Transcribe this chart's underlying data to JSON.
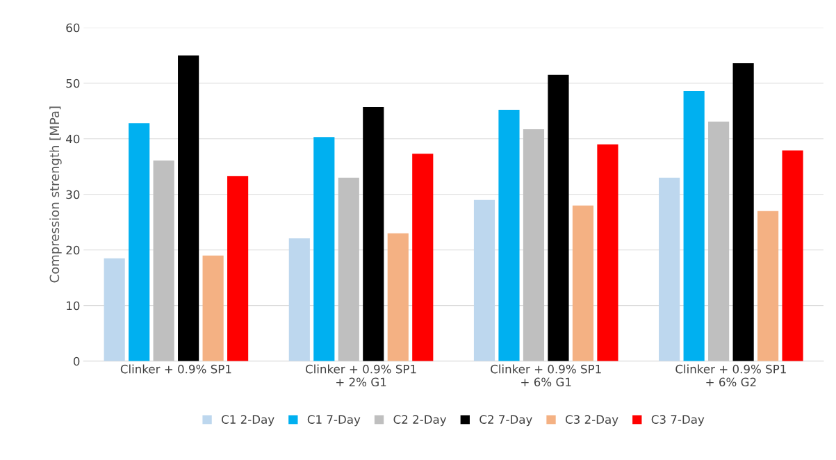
{
  "chart_data": {
    "type": "bar",
    "ylabel": "Compression strength [MPa]",
    "categories": [
      "Clinker + 0.9% SP1",
      "Clinker + 0.9% SP1\n+ 2% G1",
      "Clinker + 0.9% SP1\n+ 6% G1",
      "Clinker + 0.9% SP1\n+ 6% G2"
    ],
    "series": [
      {
        "name": "C1 2-Day",
        "color": "#bdd7ee",
        "values": [
          18.5,
          22.1,
          29.0,
          33.0
        ]
      },
      {
        "name": "C1 7-Day",
        "color": "#00b0f0",
        "values": [
          42.8,
          40.3,
          45.2,
          48.6
        ]
      },
      {
        "name": "C2 2-Day",
        "color": "#bfbfbf",
        "values": [
          36.1,
          33.0,
          41.7,
          43.1
        ]
      },
      {
        "name": "C2 7-Day",
        "color": "#000000",
        "values": [
          55.0,
          45.7,
          51.5,
          53.6
        ]
      },
      {
        "name": "C3 2-Day",
        "color": "#f4b183",
        "values": [
          19.0,
          23.0,
          28.0,
          27.0
        ]
      },
      {
        "name": "C3 7-Day",
        "color": "#ff0000",
        "values": [
          33.3,
          37.3,
          39.0,
          37.9
        ]
      }
    ],
    "ylim": [
      0,
      60
    ],
    "yticks": [
      0,
      10,
      20,
      30,
      40,
      50,
      60
    ],
    "grid": "y",
    "legend": "bottom"
  }
}
